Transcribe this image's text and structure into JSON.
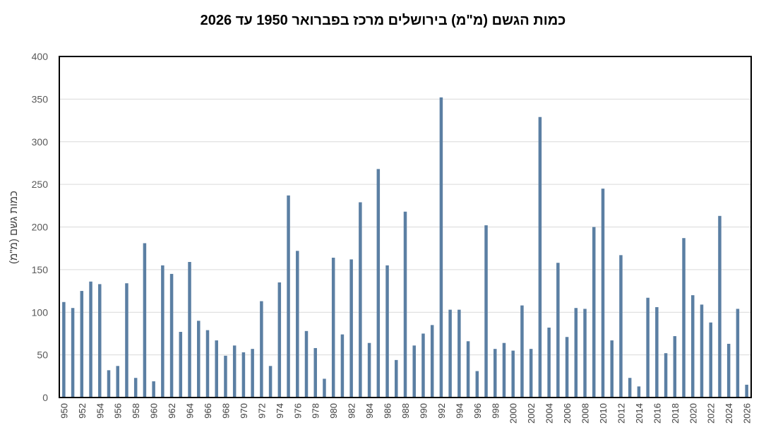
{
  "chart_data": {
    "type": "bar",
    "title": "כמות הגשם (מ\"מ) בירושלים מרכז בפברואר 1950 עד 2026",
    "ylabel": "כמות גשם (מ\"מ)",
    "xlabel": "",
    "ylim": [
      0,
      400
    ],
    "yticks": [
      0,
      50,
      100,
      150,
      200,
      250,
      300,
      350,
      400
    ],
    "grid": true,
    "legend": "none",
    "bar_color": "#5b7fa3",
    "categories": [
      "1950",
      "1951",
      "1952",
      "1953",
      "1954",
      "1955",
      "1956",
      "1957",
      "1958",
      "1959",
      "1960",
      "1961",
      "1962",
      "1963",
      "1964",
      "1965",
      "1966",
      "1967",
      "1968",
      "1969",
      "1970",
      "1971",
      "1972",
      "1973",
      "1974",
      "1975",
      "1976",
      "1977",
      "1978",
      "1979",
      "1980",
      "1981",
      "1982",
      "1983",
      "1984",
      "1985",
      "1986",
      "1987",
      "1988",
      "1989",
      "1990",
      "1991",
      "1992",
      "1993",
      "1994",
      "1995",
      "1996",
      "1997",
      "1998",
      "1999",
      "2000",
      "2001",
      "2002",
      "2003",
      "2004",
      "2005",
      "2006",
      "2007",
      "2008",
      "2009",
      "2010",
      "2011",
      "2012",
      "2013",
      "2014",
      "2015",
      "2016",
      "2017",
      "2018",
      "2019",
      "2020",
      "2021",
      "2022",
      "2023",
      "2024",
      "2025",
      "2026"
    ],
    "x_tick_labels": [
      "950",
      "",
      "952",
      "",
      "954",
      "",
      "956",
      "",
      "958",
      "",
      "960",
      "",
      "962",
      "",
      "964",
      "",
      "966",
      "",
      "968",
      "",
      "970",
      "",
      "972",
      "",
      "974",
      "",
      "976",
      "",
      "978",
      "",
      "980",
      "",
      "982",
      "",
      "984",
      "",
      "986",
      "",
      "988",
      "",
      "990",
      "",
      "992",
      "",
      "994",
      "",
      "996",
      "",
      "998",
      "",
      "2000",
      "",
      "2002",
      "",
      "2004",
      "",
      "2006",
      "",
      "2008",
      "",
      "2010",
      "",
      "2012",
      "",
      "2014",
      "",
      "2016",
      "",
      "2018",
      "",
      "2020",
      "",
      "2022",
      "",
      "2024",
      "",
      "2026"
    ],
    "values": [
      112,
      105,
      125,
      136,
      133,
      32,
      37,
      134,
      23,
      181,
      19,
      155,
      145,
      77,
      159,
      90,
      79,
      67,
      49,
      61,
      53,
      57,
      113,
      37,
      135,
      237,
      172,
      78,
      58,
      22,
      164,
      74,
      162,
      229,
      64,
      268,
      155,
      44,
      218,
      61,
      75,
      85,
      352,
      103,
      103,
      66,
      31,
      202,
      57,
      64,
      55,
      108,
      57,
      329,
      82,
      158,
      71,
      105,
      104,
      200,
      245,
      67,
      167,
      23,
      13,
      117,
      106,
      52,
      72,
      187,
      120,
      109,
      88,
      213,
      63,
      104,
      15
    ]
  }
}
